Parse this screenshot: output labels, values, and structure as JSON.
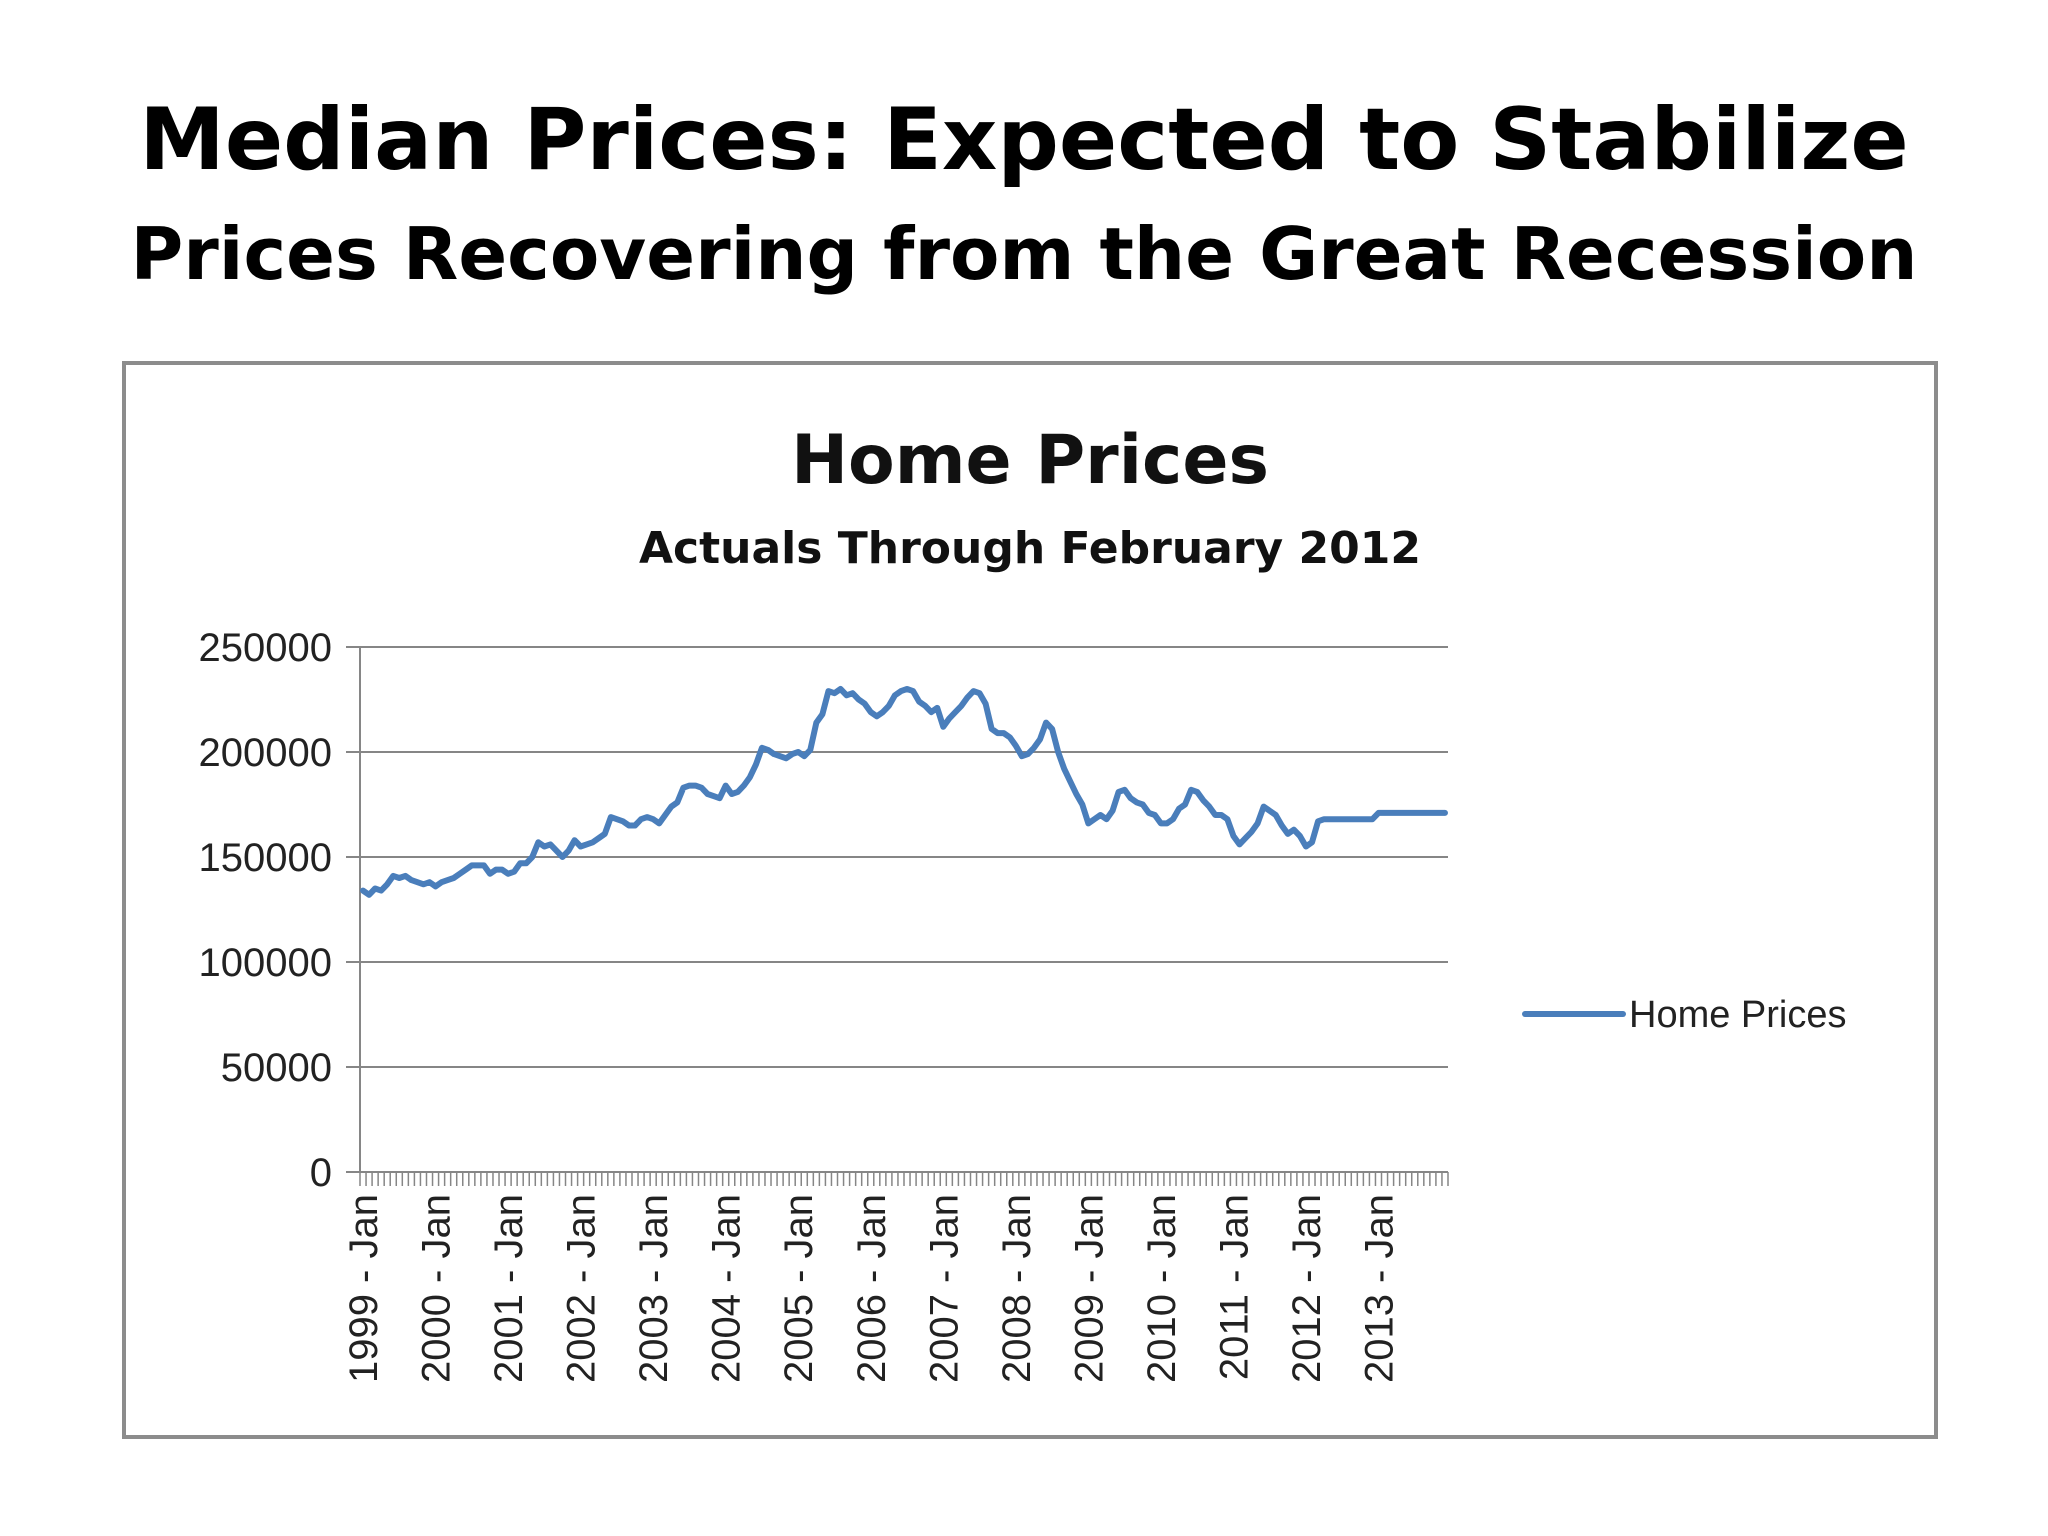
{
  "slide": {
    "title": "Median Prices:  Expected to Stabilize",
    "subtitle": "Prices  Recovering from the Great Recession"
  },
  "chart_data": {
    "type": "line",
    "title": "Home Prices",
    "subtitle": "Actuals Through February 2012",
    "xlabel": "",
    "ylabel": "",
    "ylim": [
      0,
      250000
    ],
    "y_ticks": [
      0,
      50000,
      100000,
      150000,
      200000,
      250000
    ],
    "x_tick_labels": [
      "1999 - Jan",
      "2000 - Jan",
      "2001 - Jan",
      "2002 - Jan",
      "2003 - Jan",
      "2004 - Jan",
      "2005 - Jan",
      "2006 - Jan",
      "2007 - Jan",
      "2008 - Jan",
      "2009 - Jan",
      "2010 - Jan",
      "2011 - Jan",
      "2012 - Jan",
      "2013 - Jan"
    ],
    "x_range": [
      "1999-01",
      "2013-12"
    ],
    "grid": "horizontal",
    "legend_position": "right",
    "colors": {
      "line": "#4a7ebb",
      "grid": "#868686",
      "axis": "#868686"
    },
    "series": [
      {
        "name": "Home Prices",
        "x": [
          "1999-01",
          "1999-02",
          "1999-03",
          "1999-04",
          "1999-05",
          "1999-06",
          "1999-07",
          "1999-08",
          "1999-09",
          "1999-10",
          "1999-11",
          "1999-12",
          "2000-01",
          "2000-02",
          "2000-03",
          "2000-04",
          "2000-05",
          "2000-06",
          "2000-07",
          "2000-08",
          "2000-09",
          "2000-10",
          "2000-11",
          "2000-12",
          "2001-01",
          "2001-02",
          "2001-03",
          "2001-04",
          "2001-05",
          "2001-06",
          "2001-07",
          "2001-08",
          "2001-09",
          "2001-10",
          "2001-11",
          "2001-12",
          "2002-01",
          "2002-02",
          "2002-03",
          "2002-04",
          "2002-05",
          "2002-06",
          "2002-07",
          "2002-08",
          "2002-09",
          "2002-10",
          "2002-11",
          "2002-12",
          "2003-01",
          "2003-02",
          "2003-03",
          "2003-04",
          "2003-05",
          "2003-06",
          "2003-07",
          "2003-08",
          "2003-09",
          "2003-10",
          "2003-11",
          "2003-12",
          "2004-01",
          "2004-02",
          "2004-03",
          "2004-04",
          "2004-05",
          "2004-06",
          "2004-07",
          "2004-08",
          "2004-09",
          "2004-10",
          "2004-11",
          "2004-12",
          "2005-01",
          "2005-02",
          "2005-03",
          "2005-04",
          "2005-05",
          "2005-06",
          "2005-07",
          "2005-08",
          "2005-09",
          "2005-10",
          "2005-11",
          "2005-12",
          "2006-01",
          "2006-02",
          "2006-03",
          "2006-04",
          "2006-05",
          "2006-06",
          "2006-07",
          "2006-08",
          "2006-09",
          "2006-10",
          "2006-11",
          "2006-12",
          "2007-01",
          "2007-02",
          "2007-03",
          "2007-04",
          "2007-05",
          "2007-06",
          "2007-07",
          "2007-08",
          "2007-09",
          "2007-10",
          "2007-11",
          "2007-12",
          "2008-01",
          "2008-02",
          "2008-03",
          "2008-04",
          "2008-05",
          "2008-06",
          "2008-07",
          "2008-08",
          "2008-09",
          "2008-10",
          "2008-11",
          "2008-12",
          "2009-01",
          "2009-02",
          "2009-03",
          "2009-04",
          "2009-05",
          "2009-06",
          "2009-07",
          "2009-08",
          "2009-09",
          "2009-10",
          "2009-11",
          "2009-12",
          "2010-01",
          "2010-02",
          "2010-03",
          "2010-04",
          "2010-05",
          "2010-06",
          "2010-07",
          "2010-08",
          "2010-09",
          "2010-10",
          "2010-11",
          "2010-12",
          "2011-01",
          "2011-02",
          "2011-03",
          "2011-04",
          "2011-05",
          "2011-06",
          "2011-07",
          "2011-08",
          "2011-09",
          "2011-10",
          "2011-11",
          "2011-12",
          "2012-01",
          "2012-02",
          "2012-03",
          "2012-04",
          "2012-05",
          "2012-06",
          "2012-07",
          "2012-08",
          "2012-09",
          "2012-10",
          "2012-11",
          "2012-12",
          "2013-01",
          "2013-02",
          "2013-03",
          "2013-04",
          "2013-05",
          "2013-06",
          "2013-07",
          "2013-08",
          "2013-09",
          "2013-10",
          "2013-11",
          "2013-12"
        ],
        "values": [
          134000,
          132000,
          135000,
          134000,
          137000,
          141000,
          140000,
          141000,
          139000,
          138000,
          137000,
          138000,
          136000,
          138000,
          139000,
          140000,
          142000,
          144000,
          146000,
          146000,
          146000,
          142000,
          144000,
          144000,
          142000,
          143000,
          147000,
          147000,
          150000,
          157000,
          155000,
          156000,
          153000,
          150000,
          153000,
          158000,
          155000,
          156000,
          157000,
          159000,
          161000,
          169000,
          168000,
          167000,
          165000,
          165000,
          168000,
          169000,
          168000,
          166000,
          170000,
          174000,
          176000,
          183000,
          184000,
          184000,
          183000,
          180000,
          179000,
          178000,
          184000,
          180000,
          181000,
          184000,
          188000,
          194000,
          202000,
          201000,
          199000,
          198000,
          197000,
          199000,
          200000,
          198000,
          201000,
          214000,
          218000,
          229000,
          228000,
          230000,
          227000,
          228000,
          225000,
          223000,
          219000,
          217000,
          219000,
          222000,
          227000,
          229000,
          230000,
          229000,
          224000,
          222000,
          219000,
          221000,
          212000,
          216000,
          219000,
          222000,
          226000,
          229000,
          228000,
          223000,
          211000,
          209000,
          209000,
          207000,
          203000,
          198000,
          199000,
          202000,
          206000,
          214000,
          211000,
          200000,
          192000,
          186000,
          180000,
          175000,
          166000,
          168000,
          170000,
          168000,
          172000,
          181000,
          182000,
          178000,
          176000,
          175000,
          171000,
          170000,
          166000,
          166000,
          168000,
          173000,
          175000,
          182000,
          181000,
          177000,
          174000,
          170000,
          170000,
          168000,
          160000,
          156000,
          159000,
          162000,
          166000,
          174000,
          172000,
          170000,
          165000,
          161000,
          163000,
          160000,
          155000,
          157000,
          167000,
          168000,
          168000,
          168000,
          168000,
          168000,
          168000,
          168000,
          168000,
          168000,
          171000,
          171000,
          171000,
          171000,
          171000,
          171000,
          171000,
          171000,
          171000,
          171000,
          171000,
          171000
        ]
      }
    ]
  }
}
